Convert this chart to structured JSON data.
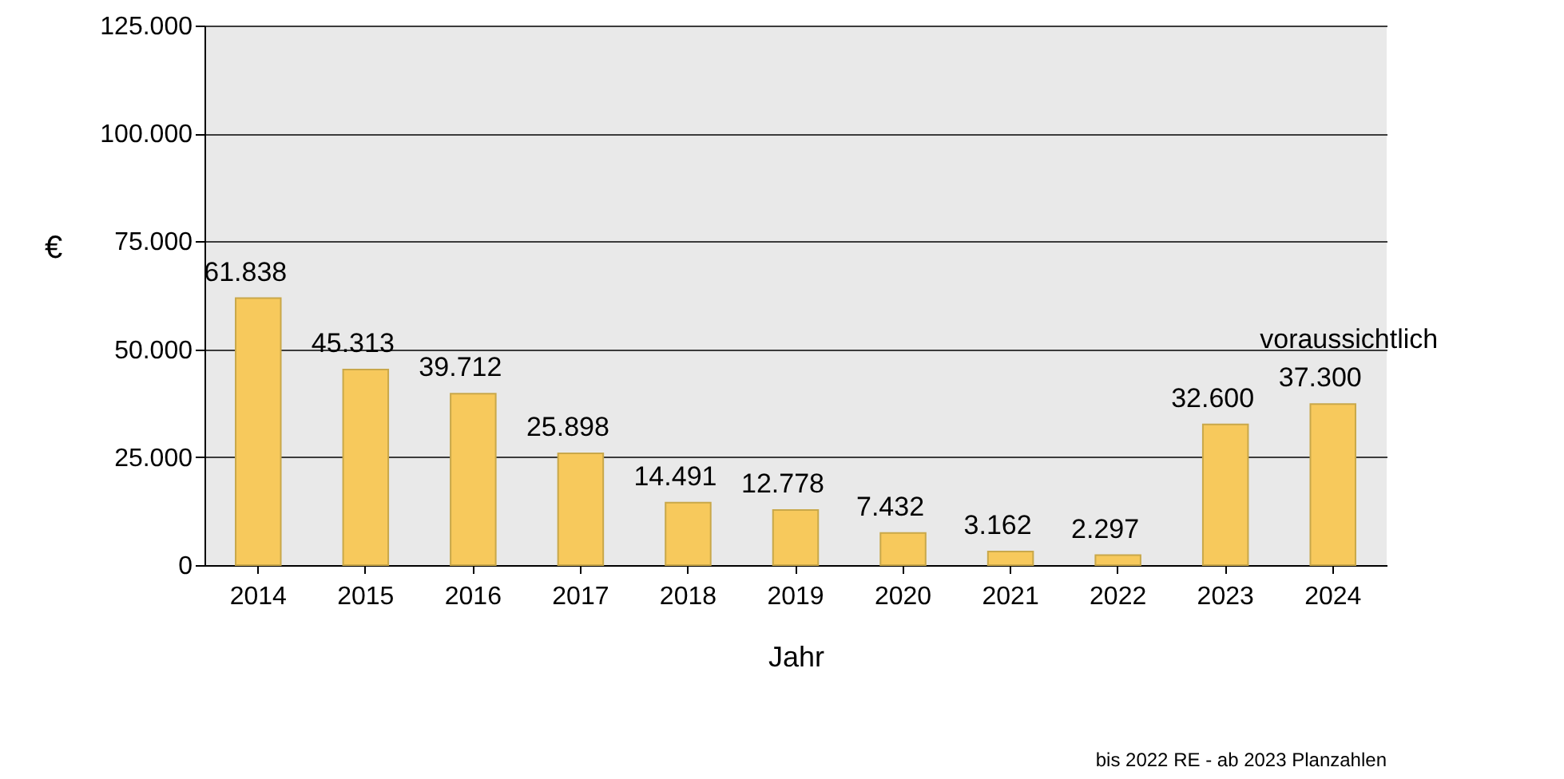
{
  "chart_data": {
    "type": "bar",
    "xlabel": "Jahr",
    "ylabel": "€",
    "categories": [
      "2014",
      "2015",
      "2016",
      "2017",
      "2018",
      "2019",
      "2020",
      "2021",
      "2022",
      "2023",
      "2024"
    ],
    "values": [
      61838,
      45313,
      39712,
      25898,
      14491,
      12778,
      7432,
      3162,
      2297,
      32600,
      37300
    ],
    "value_labels": [
      "61.838",
      "45.313",
      "39.712",
      "25.898",
      "14.491",
      "12.778",
      "7.432",
      "3.162",
      "2.297",
      "32.600",
      "37.300"
    ],
    "color": "#f7c95c",
    "ylim": [
      0,
      125000
    ],
    "yticks": [
      {
        "value": 0,
        "label": "0"
      },
      {
        "value": 25000,
        "label": "25.000"
      },
      {
        "value": 50000,
        "label": "50.000"
      },
      {
        "value": 75000,
        "label": "75.000"
      },
      {
        "value": 100000,
        "label": "100.000"
      },
      {
        "value": 125000,
        "label": "125.000"
      }
    ],
    "grid": "y",
    "annotations": [
      {
        "text": "voraussichtlich",
        "x": "2024",
        "y": 37300
      },
      "bis 2022 RE - ab 2023 Planzahlen"
    ]
  }
}
